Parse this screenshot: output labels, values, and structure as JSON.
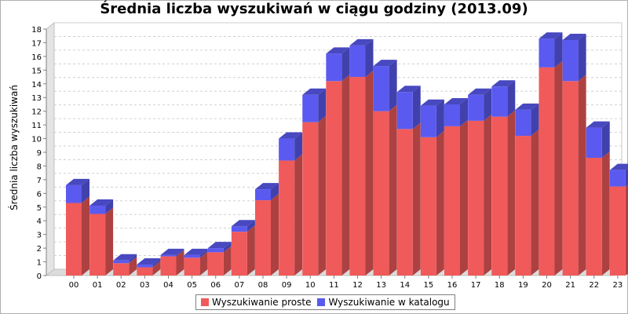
{
  "chart_data": {
    "type": "bar",
    "stacked": true,
    "three_d": true,
    "title": "Średnia liczba wyszukiwań w ciągu godziny (2013.09)",
    "xlabel": "",
    "ylabel": "Średnia liczba wyszukiwań",
    "ylim": [
      0,
      18
    ],
    "yticks": [
      "0",
      "1",
      "2",
      "3",
      "4",
      "5",
      "6",
      "7",
      "8",
      "9",
      "10",
      "11",
      "12",
      "13",
      "14",
      "15",
      "16",
      "17",
      "18"
    ],
    "grid": true,
    "legend_position": "bottom",
    "categories": [
      "00",
      "01",
      "02",
      "03",
      "04",
      "05",
      "06",
      "07",
      "08",
      "09",
      "10",
      "11",
      "12",
      "13",
      "14",
      "15",
      "16",
      "17",
      "18",
      "19",
      "20",
      "21",
      "22",
      "23"
    ],
    "series": [
      {
        "name": "Wyszukiwanie proste",
        "color": "#f05a5a",
        "values": [
          5.3,
          4.5,
          0.9,
          0.6,
          1.4,
          1.3,
          1.7,
          3.2,
          5.5,
          8.4,
          11.2,
          14.2,
          14.5,
          12.0,
          10.7,
          10.1,
          10.9,
          11.3,
          11.6,
          10.2,
          15.2,
          14.2,
          8.6,
          6.5
        ]
      },
      {
        "name": "Wyszukiwanie w katalogu",
        "color": "#5a5af0",
        "values": [
          1.3,
          0.6,
          0.2,
          0.2,
          0.1,
          0.2,
          0.3,
          0.4,
          0.8,
          1.6,
          2.0,
          2.0,
          2.3,
          3.3,
          2.7,
          2.3,
          1.6,
          1.9,
          2.2,
          1.9,
          2.1,
          3.0,
          2.2,
          1.2
        ]
      }
    ]
  }
}
